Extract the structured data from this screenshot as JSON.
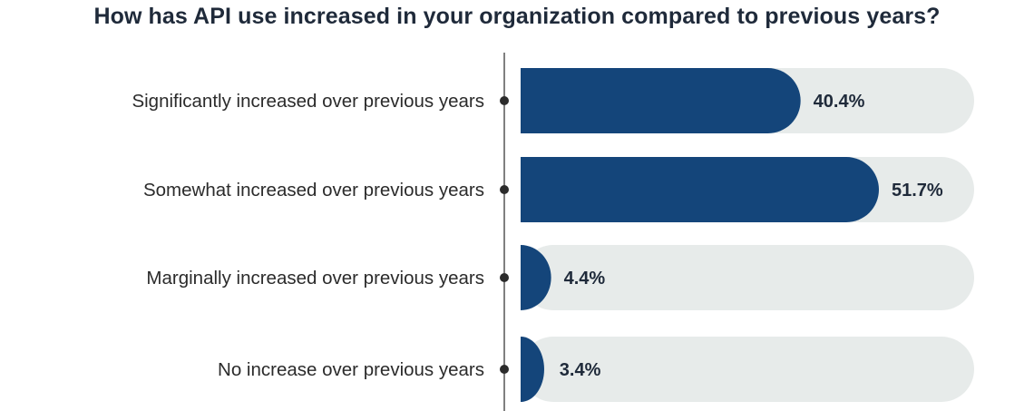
{
  "chart_data": {
    "type": "bar",
    "orientation": "horizontal",
    "title": "How has API use increased in your organization compared to previous years?",
    "categories": [
      "Significantly increased over previous years",
      "Somewhat increased over previous years",
      "Marginally increased over previous years",
      "No increase over previous years"
    ],
    "values": [
      40.4,
      51.7,
      4.4,
      3.4
    ],
    "value_labels": [
      "40.4%",
      "51.7%",
      "4.4%",
      "3.4%"
    ],
    "xlim": [
      0,
      60
    ],
    "grid": false,
    "legend": "none",
    "colors": {
      "bar": "#14457a",
      "track": "#e7ebea",
      "axis": "#2b2b2b",
      "text": "#1f2a3a"
    }
  }
}
